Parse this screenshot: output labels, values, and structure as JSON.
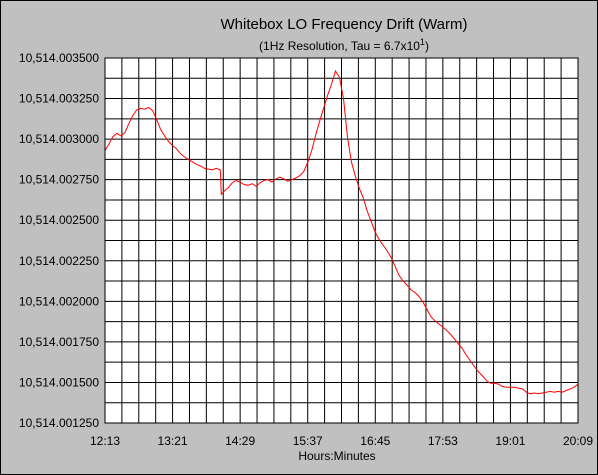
{
  "chart_data": {
    "type": "line",
    "title": "Whitebox LO Frequency Drift (Warm)",
    "subtitle": {
      "prefix": "(1Hz Resolution, Tau = 6.7x10",
      "exponent": "1",
      "suffix": ")"
    },
    "xlabel": "Hours:Minutes",
    "ylabel": "",
    "x_ticks": [
      "12:13",
      "13:21",
      "14:29",
      "15:37",
      "16:45",
      "17:53",
      "19:01",
      "20:09"
    ],
    "x_range_minutes": [
      733,
      1209
    ],
    "y_ticks": [
      "10,514.003500",
      "10,514.003250",
      "10,514.003000",
      "10,514.002750",
      "10,514.002500",
      "10,514.002250",
      "10,514.002000",
      "10,514.001750",
      "10,514.001500",
      "10,514.001250"
    ],
    "ylim": [
      10514.00125,
      10514.0035
    ],
    "grid": true,
    "line_color": "#ff0000",
    "plot_background": "#ffffff",
    "series": [
      {
        "points_time_min": [
          733,
          737,
          741,
          745,
          749,
          753,
          757,
          761,
          765,
          769,
          773,
          777,
          781,
          785,
          789,
          793,
          797,
          801,
          805,
          809,
          813,
          817,
          821,
          825,
          829,
          833,
          837,
          841,
          845,
          849,
          850,
          853,
          857,
          861,
          865,
          869,
          873,
          877,
          881,
          885,
          889,
          893,
          897,
          901,
          905,
          909,
          913,
          917,
          921,
          925,
          929,
          933,
          937,
          941,
          945,
          949,
          953,
          957,
          961,
          965,
          969,
          973,
          977,
          981,
          985,
          989,
          993,
          997,
          1001,
          1005,
          1009,
          1013,
          1017,
          1021,
          1025,
          1029,
          1033,
          1037,
          1041,
          1045,
          1049,
          1053,
          1057,
          1061,
          1065,
          1069,
          1073,
          1077,
          1081,
          1085,
          1089,
          1093,
          1097,
          1101,
          1105,
          1109,
          1113,
          1117,
          1121,
          1125,
          1129,
          1133,
          1137,
          1141,
          1145,
          1149,
          1153,
          1157,
          1161,
          1165,
          1169,
          1173,
          1177,
          1181,
          1185,
          1189,
          1193,
          1197,
          1201,
          1205,
          1209
        ],
        "values_offset_hz": [
          0,
          0,
          0
        ],
        "values": [
          10514.00293,
          10514.00297,
          10514.003015,
          10514.003035,
          10514.00302,
          10514.00304,
          10514.003095,
          10514.003145,
          10514.00318,
          10514.00319,
          10514.003185,
          10514.003195,
          10514.003175,
          10514.00312,
          10514.00306,
          10514.00302,
          10514.002985,
          10514.00296,
          10514.00294,
          10514.00291,
          10514.00289,
          10514.002875,
          10514.00286,
          10514.002845,
          10514.002835,
          10514.00282,
          10514.002815,
          10514.00281,
          10514.00282,
          10514.00281,
          10514.00266,
          10514.00268,
          10514.0027,
          10514.00273,
          10514.002745,
          10514.002735,
          10514.00272,
          10514.002715,
          10514.002725,
          10514.00271,
          10514.00273,
          10514.002745,
          10514.00275,
          10514.002735,
          10514.002755,
          10514.002765,
          10514.002755,
          10514.00274,
          10514.00275,
          10514.00276,
          10514.002775,
          10514.0028,
          10514.002855,
          10514.00293,
          10514.003025,
          10514.00311,
          10514.00319,
          10514.00327,
          10514.00334,
          10514.00342,
          10514.00338,
          10514.00325,
          10514.00301,
          10514.00286,
          10514.00277,
          10514.002695,
          10514.002635,
          10514.002555,
          10514.00249,
          10514.002425,
          10514.00238,
          10514.002345,
          10514.00231,
          10514.00227,
          10514.002215,
          10514.00216,
          10514.002125,
          10514.0021,
          10514.00207,
          10514.002055,
          10514.00203,
          10514.001995,
          10514.00195,
          10514.001905,
          10514.00188,
          10514.00186,
          10514.00184,
          10514.00182,
          10514.001795,
          10514.001765,
          10514.001735,
          10514.001705,
          10514.001665,
          10514.00163,
          10514.001595,
          10514.001565,
          10514.00154,
          10514.00151,
          10514.001495,
          10514.001495,
          10514.00149,
          10514.001475,
          10514.00147,
          10514.00147,
          10514.00147,
          10514.001465,
          10514.00146,
          10514.00144,
          10514.00143,
          10514.001435,
          10514.00143,
          10514.001435,
          10514.00144,
          10514.001445,
          10514.00144,
          10514.001445,
          10514.00144,
          10514.00145,
          10514.00146,
          10514.00147,
          10514.00149
        ]
      }
    ]
  }
}
